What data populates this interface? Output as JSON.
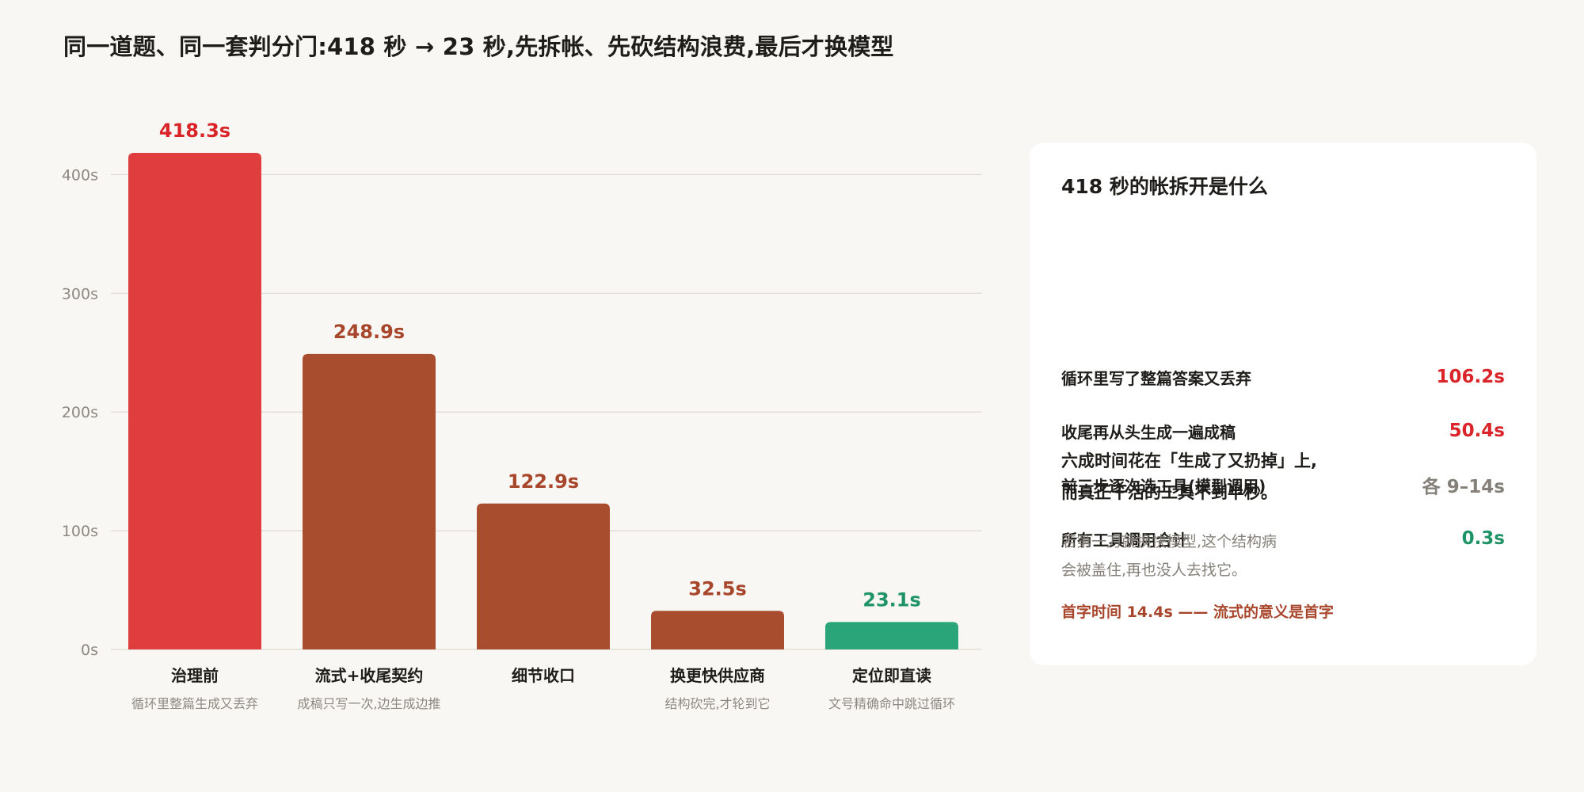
{
  "header": {
    "title": "同一道题、同一套判分门:418 秒 → 23 秒,先拆帐、先砍结构浪费,最后才换模型"
  },
  "chart_data": {
    "type": "bar",
    "categories": [
      "治理前",
      "流式+收尾契约",
      "细节收口",
      "换更快供应商",
      "定位即直读"
    ],
    "subtitles": [
      "循环里整篇生成又丢弃",
      "成稿只写一次,边生成边推",
      "",
      "结构砍完,才轮到它",
      "文号精确命中跳过循环"
    ],
    "values": [
      418.3,
      248.9,
      122.9,
      32.5,
      23.1
    ],
    "value_labels": [
      "418.3s",
      "248.9s",
      "122.9s",
      "32.5s",
      "23.1s"
    ],
    "bar_colors": [
      "#e03e3e",
      "#a84e2f",
      "#a84e2f",
      "#a84e2f",
      "#2aa57a"
    ],
    "label_colors": [
      "#d9242a",
      "#a8462c",
      "#a8462c",
      "#a8462c",
      "#1f9466"
    ],
    "yticks": [
      0,
      100,
      200,
      300,
      400
    ],
    "ytick_labels": [
      "0s",
      "100s",
      "200s",
      "300s",
      "400s"
    ],
    "ylim": [
      0,
      418.3
    ],
    "grid": true
  },
  "panel": {
    "title": "418 秒的帐拆开是什么",
    "rows": [
      {
        "label": "循环里写了整篇答案又丢弃",
        "value": "106.2s",
        "color": "#d9242a"
      },
      {
        "label": "收尾再从头生成一遍成稿",
        "value": "50.4s",
        "color": "#d9242a"
      },
      {
        "label": "前三步逐次选工具(模型调用)",
        "value": "各 9–14s",
        "color": "#85817a"
      },
      {
        "label": "所有工具调用合计",
        "value": "0.3s",
        "color": "#1f9466"
      }
    ],
    "summary_line1": "六成时间花在「生成了又扔掉」上,",
    "summary_line2": "而真正干活的工具不到半秒。",
    "note_line1": "若第一刀就换快模型,这个结构病",
    "note_line2": "会被盖住,再也没人去找它。",
    "footnote": "首字时间 14.4s —— 流式的意义是首字"
  }
}
